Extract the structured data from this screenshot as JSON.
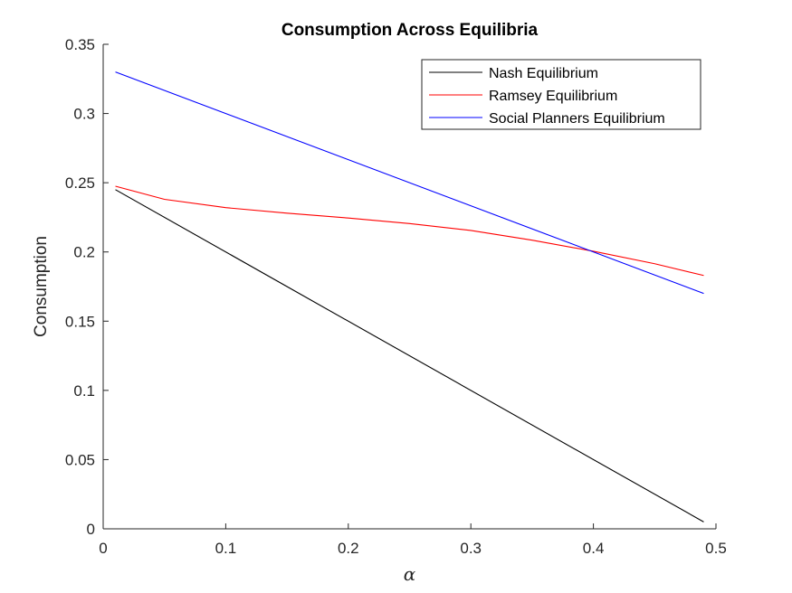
{
  "chart_data": {
    "type": "line",
    "title": "Consumption Across Equilibria",
    "xlabel": "α",
    "ylabel": "Consumption",
    "xlim": [
      0,
      0.5
    ],
    "ylim": [
      0,
      0.35
    ],
    "xticks": [
      0,
      0.1,
      0.2,
      0.3,
      0.4,
      0.5
    ],
    "xtick_labels": [
      "0",
      "0.1",
      "0.2",
      "0.3",
      "0.4",
      "0.5"
    ],
    "yticks": [
      0,
      0.05,
      0.1,
      0.15,
      0.2,
      0.25,
      0.3,
      0.35
    ],
    "ytick_labels": [
      "0",
      "0.05",
      "0.1",
      "0.15",
      "0.2",
      "0.25",
      "0.3",
      "0.35"
    ],
    "grid": false,
    "legend_position": "top-right",
    "series": [
      {
        "name": "Nash Equilibrium",
        "color": "#000000",
        "x": [
          0.01,
          0.49
        ],
        "y": [
          0.245,
          0.005
        ]
      },
      {
        "name": "Ramsey Equilibrium",
        "color": "#ff0000",
        "x": [
          0.01,
          0.05,
          0.1,
          0.15,
          0.2,
          0.25,
          0.3,
          0.35,
          0.4,
          0.45,
          0.49
        ],
        "y": [
          0.2475,
          0.238,
          0.232,
          0.228,
          0.2245,
          0.2205,
          0.2155,
          0.2085,
          0.2005,
          0.1915,
          0.183
        ]
      },
      {
        "name": "Social Planners Equilibrium",
        "color": "#0000ff",
        "x": [
          0.01,
          0.49
        ],
        "y": [
          0.33,
          0.17
        ]
      }
    ]
  }
}
